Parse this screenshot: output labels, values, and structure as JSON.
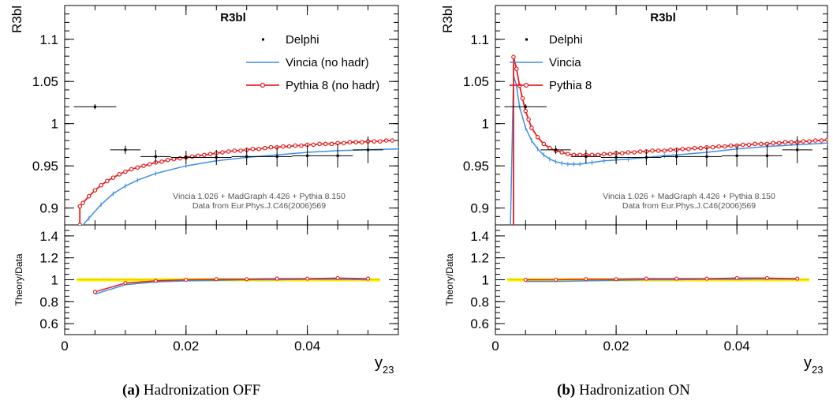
{
  "chart_data": [
    {
      "type": "line",
      "title": "R3bl",
      "panel_caption": {
        "label": "(a)",
        "text": "Hadronization OFF"
      },
      "ylabel": "R3bl",
      "ratio_ylabel": "Theory/Data",
      "xlabel": "y",
      "xlabel_sub": "23",
      "xlim": [
        0,
        0.055
      ],
      "ylim": [
        0.88,
        1.14
      ],
      "ratio_ylim": [
        0.5,
        1.5
      ],
      "x_ticks": [
        0,
        0.02,
        0.04
      ],
      "x_tick_labels": [
        "0",
        "0.02",
        "0.04"
      ],
      "y_ticks": [
        0.9,
        0.95,
        1.0,
        1.05,
        1.1
      ],
      "y_tick_labels": [
        "0.9",
        "0.95",
        "1",
        "1.05",
        "1.1"
      ],
      "ratio_ticks": [
        0.6,
        0.8,
        1.0,
        1.2,
        1.4
      ],
      "ratio_tick_labels": [
        "0.6",
        "0.8",
        "1",
        "1.2",
        "1.4"
      ],
      "legend_position": "top-right",
      "grid": false,
      "annotation_lines": [
        "Vincia 1.026 + MadGraph 4.426 + Pythia 8.150",
        "Data from Eur.Phys.J.C46(2006)569"
      ],
      "data_series": {
        "name": "Delphi",
        "color": "#000000",
        "x": [
          0.005,
          0.01,
          0.015,
          0.02,
          0.025,
          0.03,
          0.035,
          0.04,
          0.045,
          0.05
        ],
        "y": [
          1.02,
          0.969,
          0.961,
          0.96,
          0.96,
          0.961,
          0.961,
          0.962,
          0.962,
          0.969
        ],
        "xerr": [
          0.0035,
          0.0025,
          0.0025,
          0.0025,
          0.0025,
          0.0025,
          0.0025,
          0.0025,
          0.0025,
          0.0025
        ],
        "yerr": [
          0.003,
          0.005,
          0.008,
          0.008,
          0.009,
          0.01,
          0.012,
          0.013,
          0.014,
          0.016
        ]
      },
      "series": [
        {
          "name": "Vincia (no hadr)",
          "color": "#3f8ee6",
          "x": [
            0.0025,
            0.004,
            0.006,
            0.008,
            0.01,
            0.012,
            0.015,
            0.02,
            0.025,
            0.03,
            0.035,
            0.04,
            0.045,
            0.05,
            0.055
          ],
          "y": [
            0.876,
            0.888,
            0.904,
            0.917,
            0.926,
            0.933,
            0.941,
            0.95,
            0.956,
            0.96,
            0.963,
            0.966,
            0.968,
            0.969,
            0.97
          ],
          "ratio_x": [
            0.005,
            0.01,
            0.015,
            0.02,
            0.025,
            0.03,
            0.035,
            0.04,
            0.045,
            0.05
          ],
          "ratio_y": [
            0.87,
            0.955,
            0.98,
            0.99,
            0.995,
            1.0,
            1.0,
            1.005,
            1.005,
            1.0
          ]
        },
        {
          "name": "Pythia 8 (no hadr)",
          "color": "#e81f1f",
          "x": [
            0.0025,
            0.0025,
            0.003,
            0.004,
            0.005,
            0.006,
            0.007,
            0.008,
            0.009,
            0.01,
            0.011,
            0.012,
            0.013,
            0.014,
            0.015,
            0.016,
            0.017,
            0.018,
            0.019,
            0.02,
            0.021,
            0.022,
            0.023,
            0.024,
            0.025,
            0.026,
            0.027,
            0.028,
            0.029,
            0.03,
            0.031,
            0.032,
            0.033,
            0.034,
            0.035,
            0.036,
            0.037,
            0.038,
            0.039,
            0.04,
            0.041,
            0.042,
            0.043,
            0.044,
            0.045,
            0.046,
            0.047,
            0.048,
            0.049,
            0.05,
            0.051,
            0.052,
            0.053,
            0.054
          ],
          "y": [
            0.88,
            0.902,
            0.906,
            0.914,
            0.921,
            0.927,
            0.932,
            0.936,
            0.94,
            0.943,
            0.946,
            0.948,
            0.95,
            0.952,
            0.954,
            0.955,
            0.957,
            0.958,
            0.959,
            0.96,
            0.961,
            0.962,
            0.963,
            0.964,
            0.965,
            0.966,
            0.967,
            0.968,
            0.968,
            0.969,
            0.97,
            0.97,
            0.971,
            0.972,
            0.972,
            0.973,
            0.973,
            0.974,
            0.974,
            0.975,
            0.975,
            0.976,
            0.976,
            0.976,
            0.977,
            0.977,
            0.978,
            0.978,
            0.978,
            0.979,
            0.979,
            0.979,
            0.98,
            0.98
          ],
          "ratio_x": [
            0.005,
            0.01,
            0.015,
            0.02,
            0.025,
            0.03,
            0.035,
            0.04,
            0.045,
            0.05
          ],
          "ratio_y": [
            0.89,
            0.97,
            0.99,
            1.0,
            1.005,
            1.005,
            1.01,
            1.01,
            1.015,
            1.01
          ]
        }
      ],
      "ratio_band": {
        "color": "#ffee00",
        "x": [
          0.002,
          0.052
        ],
        "lower": 0.985,
        "upper": 1.015
      }
    },
    {
      "type": "line",
      "title": "R3bl",
      "panel_caption": {
        "label": "(b)",
        "text": "Hadronization ON"
      },
      "ylabel": "R3bl",
      "ratio_ylabel": "Theory/Data",
      "xlabel": "y",
      "xlabel_sub": "23",
      "xlim": [
        0,
        0.055
      ],
      "ylim": [
        0.88,
        1.14
      ],
      "ratio_ylim": [
        0.5,
        1.5
      ],
      "x_ticks": [
        0,
        0.02,
        0.04
      ],
      "x_tick_labels": [
        "0",
        "0.02",
        "0.04"
      ],
      "y_ticks": [
        0.9,
        0.95,
        1.0,
        1.05,
        1.1
      ],
      "y_tick_labels": [
        "0.9",
        "0.95",
        "1",
        "1.05",
        "1.1"
      ],
      "ratio_ticks": [
        0.6,
        0.8,
        1.0,
        1.2,
        1.4
      ],
      "ratio_tick_labels": [
        "0.6",
        "0.8",
        "1",
        "1.2",
        "1.4"
      ],
      "legend_position": "top-left",
      "grid": false,
      "annotation_lines": [
        "Vincia 1.026 + MadGraph 4.426 + Pythia 8.150",
        "Data from Eur.Phys.J.C46(2006)569"
      ],
      "data_series": {
        "name": "Delphi",
        "color": "#000000",
        "x": [
          0.005,
          0.01,
          0.015,
          0.02,
          0.025,
          0.03,
          0.035,
          0.04,
          0.045,
          0.05
        ],
        "y": [
          1.02,
          0.969,
          0.961,
          0.96,
          0.96,
          0.961,
          0.961,
          0.962,
          0.962,
          0.969
        ],
        "xerr": [
          0.0035,
          0.0025,
          0.0025,
          0.0025,
          0.0025,
          0.0025,
          0.0025,
          0.0025,
          0.0025,
          0.0025
        ],
        "yerr": [
          0.003,
          0.005,
          0.008,
          0.008,
          0.009,
          0.01,
          0.012,
          0.013,
          0.014,
          0.016
        ]
      },
      "series": [
        {
          "name": "Vincia",
          "color": "#3f8ee6",
          "x": [
            0.0025,
            0.0025,
            0.003,
            0.0035,
            0.004,
            0.005,
            0.006,
            0.007,
            0.008,
            0.009,
            0.01,
            0.011,
            0.012,
            0.013,
            0.014,
            0.016,
            0.018,
            0.02,
            0.022,
            0.025,
            0.028,
            0.03,
            0.035,
            0.04,
            0.045,
            0.05,
            0.055
          ],
          "y": [
            0.85,
            0.88,
            1.057,
            1.045,
            1.02,
            0.995,
            0.98,
            0.97,
            0.963,
            0.958,
            0.955,
            0.953,
            0.952,
            0.952,
            0.952,
            0.954,
            0.956,
            0.957,
            0.958,
            0.96,
            0.962,
            0.963,
            0.966,
            0.97,
            0.973,
            0.975,
            0.977
          ],
          "ratio_x": [
            0.005,
            0.01,
            0.015,
            0.02,
            0.025,
            0.03,
            0.035,
            0.04,
            0.045,
            0.05
          ],
          "ratio_y": [
            0.985,
            0.985,
            0.99,
            0.995,
            1.0,
            1.0,
            1.005,
            1.005,
            1.01,
            1.005
          ]
        },
        {
          "name": "Pythia 8",
          "color": "#e81f1f",
          "x": [
            0.003,
            0.003,
            0.0035,
            0.004,
            0.0045,
            0.005,
            0.0055,
            0.006,
            0.007,
            0.008,
            0.009,
            0.01,
            0.011,
            0.012,
            0.013,
            0.014,
            0.015,
            0.016,
            0.017,
            0.018,
            0.019,
            0.02,
            0.021,
            0.022,
            0.023,
            0.024,
            0.025,
            0.026,
            0.027,
            0.028,
            0.029,
            0.03,
            0.031,
            0.032,
            0.033,
            0.034,
            0.035,
            0.036,
            0.037,
            0.038,
            0.039,
            0.04,
            0.041,
            0.042,
            0.043,
            0.044,
            0.045,
            0.046,
            0.047,
            0.048,
            0.049,
            0.05,
            0.051,
            0.052,
            0.053,
            0.054,
            0.055
          ],
          "y": [
            0.85,
            1.079,
            1.065,
            1.045,
            1.03,
            1.015,
            1.005,
            0.995,
            0.984,
            0.976,
            0.971,
            0.968,
            0.966,
            0.964,
            0.963,
            0.963,
            0.963,
            0.963,
            0.963,
            0.964,
            0.964,
            0.965,
            0.965,
            0.966,
            0.966,
            0.967,
            0.967,
            0.968,
            0.968,
            0.968,
            0.969,
            0.969,
            0.97,
            0.97,
            0.971,
            0.971,
            0.972,
            0.972,
            0.973,
            0.973,
            0.974,
            0.974,
            0.975,
            0.975,
            0.976,
            0.976,
            0.976,
            0.977,
            0.977,
            0.978,
            0.978,
            0.978,
            0.979,
            0.979,
            0.98,
            0.98,
            0.981
          ],
          "ratio_x": [
            0.005,
            0.01,
            0.015,
            0.02,
            0.025,
            0.03,
            0.035,
            0.04,
            0.045,
            0.05
          ],
          "ratio_y": [
            1.0,
            1.0,
            1.005,
            1.005,
            1.01,
            1.01,
            1.01,
            1.015,
            1.015,
            1.01
          ]
        }
      ],
      "ratio_band": {
        "color": "#ffee00",
        "x": [
          0.002,
          0.052
        ],
        "lower": 0.985,
        "upper": 1.015
      }
    }
  ]
}
